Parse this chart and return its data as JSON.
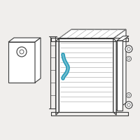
{
  "bg_color": "#f0eeec",
  "line_color": "#3a3a3a",
  "highlight_color": "#2b9cb8",
  "line_width": 0.8,
  "fig_width": 2.0,
  "fig_height": 2.0,
  "dpi": 100
}
